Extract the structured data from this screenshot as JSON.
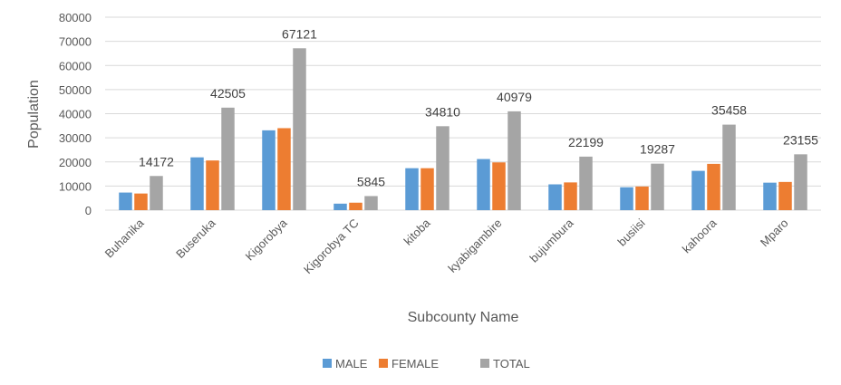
{
  "chart_data": {
    "type": "bar",
    "title": "",
    "xlabel": "Subcounty Name",
    "ylabel": "Population",
    "ylim": [
      0,
      80000
    ],
    "ytick_step": 10000,
    "grid": true,
    "legend_position": "bottom",
    "categories": [
      "Buhanika",
      "Buseruka",
      "Kigorobya",
      "Kigorobya TC",
      "kitoba",
      "kyabigambire",
      "bujumbura",
      "busiisi",
      "kahoora",
      "Mparo"
    ],
    "series": [
      {
        "name": "MALE",
        "color": "#5B9BD5",
        "values": [
          7300,
          21900,
          33100,
          2700,
          17400,
          21200,
          10700,
          9500,
          16300,
          11400
        ]
      },
      {
        "name": "FEMALE",
        "color": "#ED7D31",
        "values": [
          6900,
          20600,
          34000,
          3100,
          17400,
          19800,
          11500,
          9800,
          19200,
          11700
        ]
      },
      {
        "name": "TOTAL",
        "color": "#A5A5A5",
        "values": [
          14172,
          42505,
          67121,
          5845,
          34810,
          40979,
          22199,
          19287,
          35458,
          23155
        ]
      }
    ],
    "data_labels": {
      "series": "TOTAL",
      "labels": [
        "14172",
        "42505",
        "67121",
        "5845",
        "34810",
        "40979",
        "22199",
        "19287",
        "35458",
        "23155"
      ]
    }
  }
}
